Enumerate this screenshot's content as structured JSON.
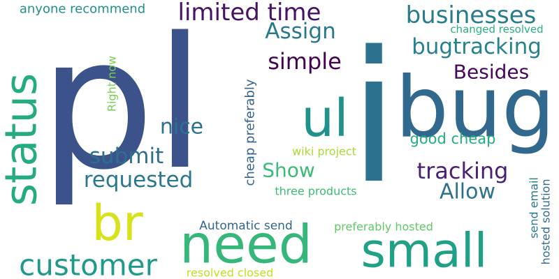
{
  "background": "#ffffff",
  "words": [
    {
      "text": "pl",
      "color": "#3b528b"
    },
    {
      "text": "i",
      "color": "#2c728e"
    },
    {
      "text": "bug",
      "color": "#31688e"
    },
    {
      "text": "need",
      "color": "#35b779"
    },
    {
      "text": "small",
      "color": "#1fa187"
    },
    {
      "text": "status",
      "color": "#25ab82"
    },
    {
      "text": "br",
      "color": "#d8e219"
    },
    {
      "text": "ul",
      "color": "#21918c"
    },
    {
      "text": "customer",
      "color": "#1f9a8a"
    },
    {
      "text": "limited time",
      "color": "#471164"
    },
    {
      "text": "businesses",
      "color": "#287c8e"
    },
    {
      "text": "bugtracking",
      "color": "#26828e"
    },
    {
      "text": "Assign",
      "color": "#2a788e"
    },
    {
      "text": "simple",
      "color": "#440154"
    },
    {
      "text": "Besides",
      "color": "#46085c"
    },
    {
      "text": "tracking",
      "color": "#482173"
    },
    {
      "text": "Allow",
      "color": "#2c728e"
    },
    {
      "text": "requested",
      "color": "#2a788e"
    },
    {
      "text": "submit",
      "color": "#2d708e"
    },
    {
      "text": "nice",
      "color": "#2c728e"
    },
    {
      "text": "Show",
      "color": "#3bbb75"
    },
    {
      "text": "good cheap",
      "color": "#26ad81"
    },
    {
      "text": "cheap preferably",
      "color": "#33638d"
    },
    {
      "text": "anyone recommend",
      "color": "#21908d"
    },
    {
      "text": "Right now",
      "color": "#7ad151"
    },
    {
      "text": "changed resolved",
      "color": "#2ab07f"
    },
    {
      "text": "wiki project",
      "color": "#a8db34"
    },
    {
      "text": "three products",
      "color": "#3dbc74"
    },
    {
      "text": "Automatic send",
      "color": "#31668e"
    },
    {
      "text": "preferably hosted",
      "color": "#5ec962"
    },
    {
      "text": "resolved closed",
      "color": "#c2df23"
    },
    {
      "text": "send email",
      "color": "#2a788e"
    },
    {
      "text": "hosted solution",
      "color": "#306a8e"
    }
  ]
}
